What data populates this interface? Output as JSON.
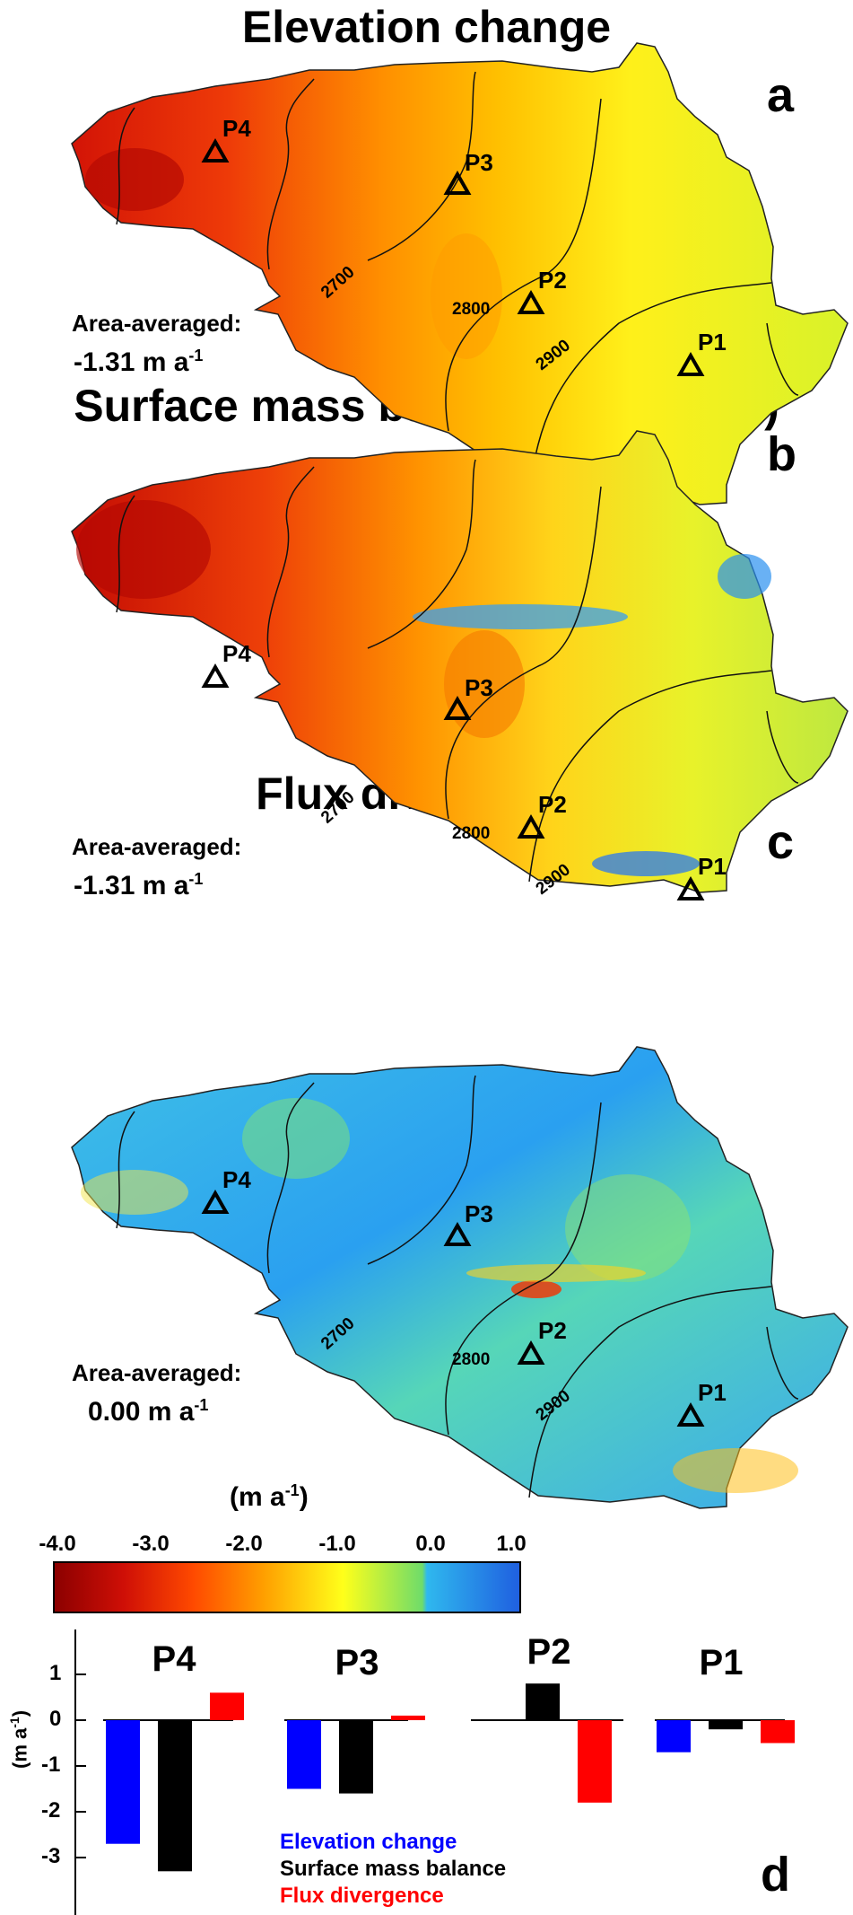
{
  "maps": [
    {
      "title": "Elevation change",
      "letter": "a",
      "avg_label": "Area-averaged:",
      "avg_value": "-1.31 m a",
      "avg_unit_sup": "-1"
    },
    {
      "title": "Surface mass balance (in ice eq.)",
      "letter": "b",
      "avg_label": "Area-averaged:",
      "avg_value": "-1.31 m a",
      "avg_unit_sup": "-1"
    },
    {
      "title": "Flux divergence",
      "letter": "c",
      "avg_label": "Area-averaged:",
      "avg_value": "0.00 m a",
      "avg_unit_sup": "-1"
    }
  ],
  "points": [
    "P1",
    "P2",
    "P3",
    "P4"
  ],
  "contours": [
    "2700",
    "2800",
    "2900"
  ],
  "colorbar": {
    "title": "(m a",
    "title_sup": "-1",
    "title_close": ")",
    "ticks": [
      "-4.0",
      "-3.0",
      "-2.0",
      "-1.0",
      "0.0",
      "1.0"
    ],
    "range": [
      -4.0,
      1.0
    ],
    "stops": [
      "#8b0000",
      "#e8200a",
      "#ff8a00",
      "#ffff1a",
      "#6fdc6a",
      "#2aa8f0",
      "#1f5fe0"
    ]
  },
  "panel_d": {
    "letter": "d",
    "ylabel": "(m a",
    "ylabel_sup": "-1",
    "ylabel_close": ")",
    "colors": {
      "Elevation change": "#0000ff",
      "Surface mass balance": "#000000",
      "Flux divergence": "#ff0000"
    }
  },
  "chart_data": {
    "type": "bar",
    "categories": [
      "P4",
      "P3",
      "P2",
      "P1"
    ],
    "series": [
      {
        "name": "Elevation change",
        "values": [
          -2.7,
          -1.5,
          0.0,
          -0.7
        ]
      },
      {
        "name": "Surface mass balance",
        "values": [
          -3.3,
          -1.6,
          0.8,
          -0.2
        ]
      },
      {
        "name": "Flux divergence",
        "values": [
          0.6,
          0.1,
          -1.8,
          -0.5
        ]
      }
    ],
    "yticks": [
      "1",
      "0",
      "-1",
      "-2",
      "-3"
    ],
    "ylim": [
      -3.5,
      1.2
    ],
    "ylabel": "(m a-1)"
  }
}
